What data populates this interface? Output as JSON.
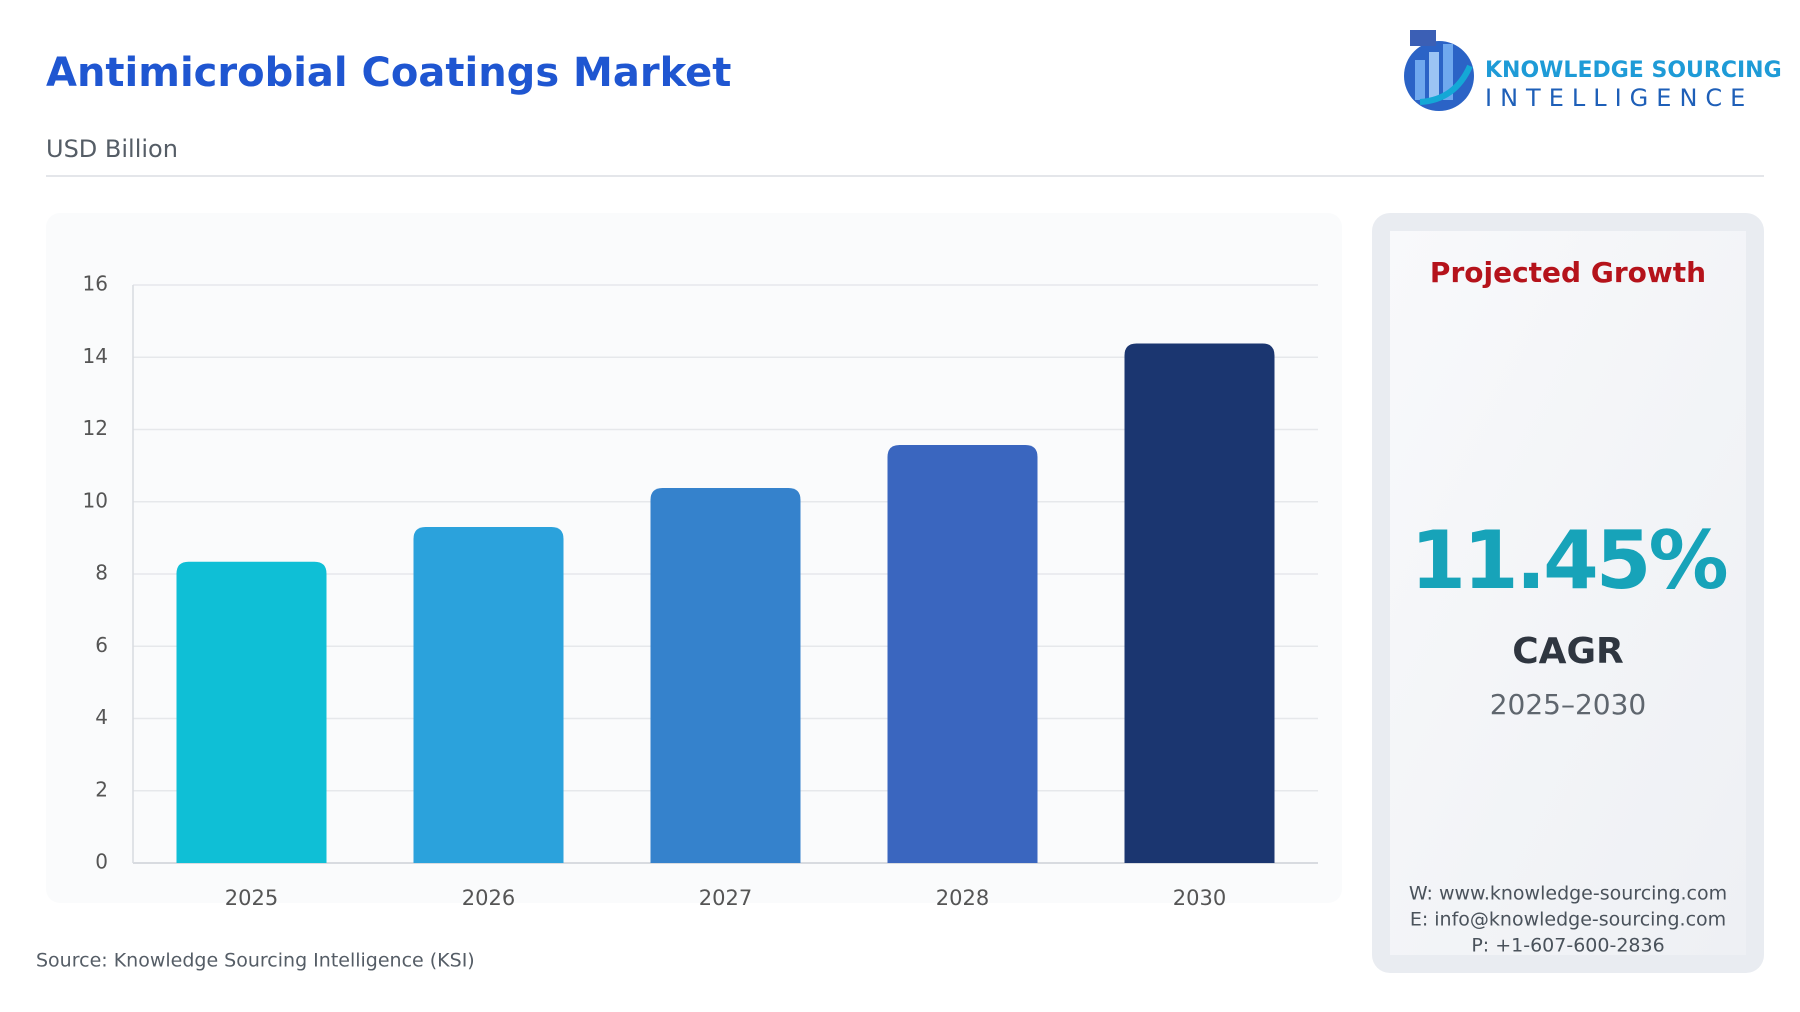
{
  "chart_data": {
    "type": "bar",
    "title": "Antimicrobial Coatings Market",
    "subtitle": "USD Billion",
    "categories": [
      "2025",
      "2026",
      "2027",
      "2028",
      "2030"
    ],
    "values": [
      8.34,
      9.3,
      10.38,
      11.57,
      14.38
    ],
    "colors": [
      "#0fbfd6",
      "#2ba2dc",
      "#3582cc",
      "#3a66bf",
      "#1b3670"
    ],
    "ylim": [
      0,
      16
    ],
    "yticks": [
      0,
      2,
      4,
      6,
      8,
      10,
      12,
      14,
      16
    ],
    "grid": true,
    "source": "Source: Knowledge Sourcing Intelligence (KSI)"
  },
  "logo": {
    "line1": "KNOWLEDGE SOURCING",
    "line2": "INTELLIGENCE"
  },
  "panel": {
    "heading": "Projected Growth",
    "cagr_value": "11.45%",
    "cagr_label": "CAGR",
    "period": "2025–2030",
    "contacts": [
      "W: www.knowledge-sourcing.com",
      "E: info@knowledge-sourcing.com",
      "P: +1-607-600-2836"
    ]
  }
}
